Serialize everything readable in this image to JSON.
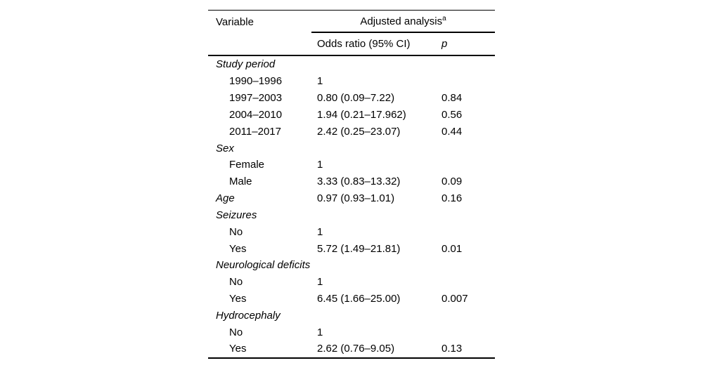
{
  "table": {
    "header": {
      "variable": "Variable",
      "adjusted_analysis": "Adjusted analysis",
      "adjusted_analysis_footnote_marker": "a",
      "odds_ratio": "Odds ratio (95% CI)",
      "p": "p"
    },
    "rows": [
      {
        "label": "Study period",
        "style": "category",
        "or": "",
        "p": ""
      },
      {
        "label": "1990–1996",
        "style": "sub",
        "or": "1",
        "p": ""
      },
      {
        "label": "1997–2003",
        "style": "sub",
        "or": "0.80 (0.09–7.22)",
        "p": "0.84"
      },
      {
        "label": "2004–2010",
        "style": "sub",
        "or": "1.94 (0.21–17.962)",
        "p": "0.56"
      },
      {
        "label": "2011–2017",
        "style": "sub",
        "or": "2.42 (0.25–23.07)",
        "p": "0.44"
      },
      {
        "label": "Sex",
        "style": "category",
        "or": "",
        "p": ""
      },
      {
        "label": "Female",
        "style": "sub",
        "or": "1",
        "p": ""
      },
      {
        "label": "Male",
        "style": "sub",
        "or": "3.33 (0.83–13.32)",
        "p": "0.09"
      },
      {
        "label": "Age",
        "style": "category",
        "or": "0.97 (0.93–1.01)",
        "p": "0.16"
      },
      {
        "label": "Seizures",
        "style": "category",
        "or": "",
        "p": ""
      },
      {
        "label": "No",
        "style": "sub",
        "or": "1",
        "p": ""
      },
      {
        "label": "Yes",
        "style": "sub",
        "or": "5.72 (1.49–21.81)",
        "p": "0.01"
      },
      {
        "label": "Neurological deficits",
        "style": "category",
        "or": "",
        "p": ""
      },
      {
        "label": "No",
        "style": "sub",
        "or": "1",
        "p": ""
      },
      {
        "label": "Yes",
        "style": "sub",
        "or": "6.45 (1.66–25.00)",
        "p": "0.007"
      },
      {
        "label": "Hydrocephaly",
        "style": "category",
        "or": "",
        "p": ""
      },
      {
        "label": "No",
        "style": "sub",
        "or": "1",
        "p": ""
      },
      {
        "label": "Yes",
        "style": "sub",
        "or": "2.62 (0.76–9.05)",
        "p": "0.13"
      }
    ],
    "colors": {
      "text": "#000000",
      "background": "#ffffff",
      "rule": "#000000"
    }
  }
}
